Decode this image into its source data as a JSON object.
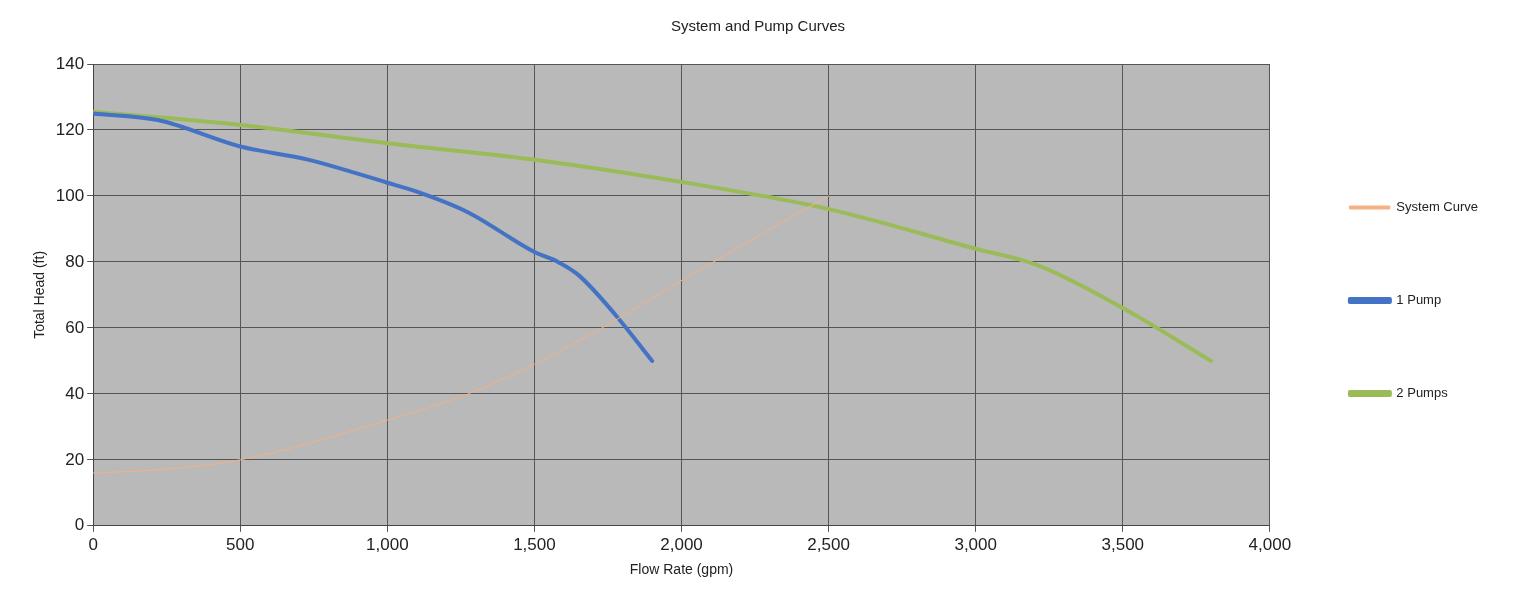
{
  "chart_data": {
    "type": "line",
    "title": "System and Pump Curves",
    "xlabel": "Flow Rate (gpm)",
    "ylabel": "Total Head (ft)",
    "xlim": [
      0,
      4000
    ],
    "xticks": [
      {
        "value": 0,
        "label": "0"
      },
      {
        "value": 500,
        "label": "500"
      },
      {
        "value": 1000,
        "label": "1,000"
      },
      {
        "value": 1500,
        "label": "1,500"
      },
      {
        "value": 2000,
        "label": "2,000"
      },
      {
        "value": 2500,
        "label": "2,500"
      },
      {
        "value": 3000,
        "label": "3,000"
      },
      {
        "value": 3500,
        "label": "3,500"
      },
      {
        "value": 4000,
        "label": "4,000"
      }
    ],
    "ylim": [
      0,
      140
    ],
    "yticks": [
      0,
      20,
      40,
      60,
      80,
      100,
      120,
      140
    ],
    "grid": true,
    "legend": "right",
    "marker": "none",
    "line_style": "solid",
    "series": [
      {
        "name": "System Curve",
        "color": "#f4b183",
        "x": [
          0,
          220,
          500,
          1000,
          1275,
          1500,
          1750,
          2050,
          2500
        ],
        "values": [
          16,
          17,
          20,
          32,
          40,
          49,
          61,
          77,
          100
        ]
      },
      {
        "name": "1 Pump",
        "color": "#4472c4",
        "x": [
          0,
          220,
          500,
          730,
          1000,
          1110,
          1275,
          1500,
          1580,
          1650,
          1775,
          1900
        ],
        "values": [
          125,
          123,
          115,
          111,
          104,
          101,
          95,
          83,
          80,
          76,
          64,
          50
        ]
      },
      {
        "name": "2 Pumps",
        "color": "#9bbb59",
        "x": [
          0,
          500,
          1000,
          1500,
          2050,
          2500,
          3000,
          3210,
          3500,
          3800
        ],
        "values": [
          125.5,
          121.5,
          116,
          111,
          103.5,
          96,
          84,
          79,
          66,
          50
        ]
      }
    ]
  }
}
